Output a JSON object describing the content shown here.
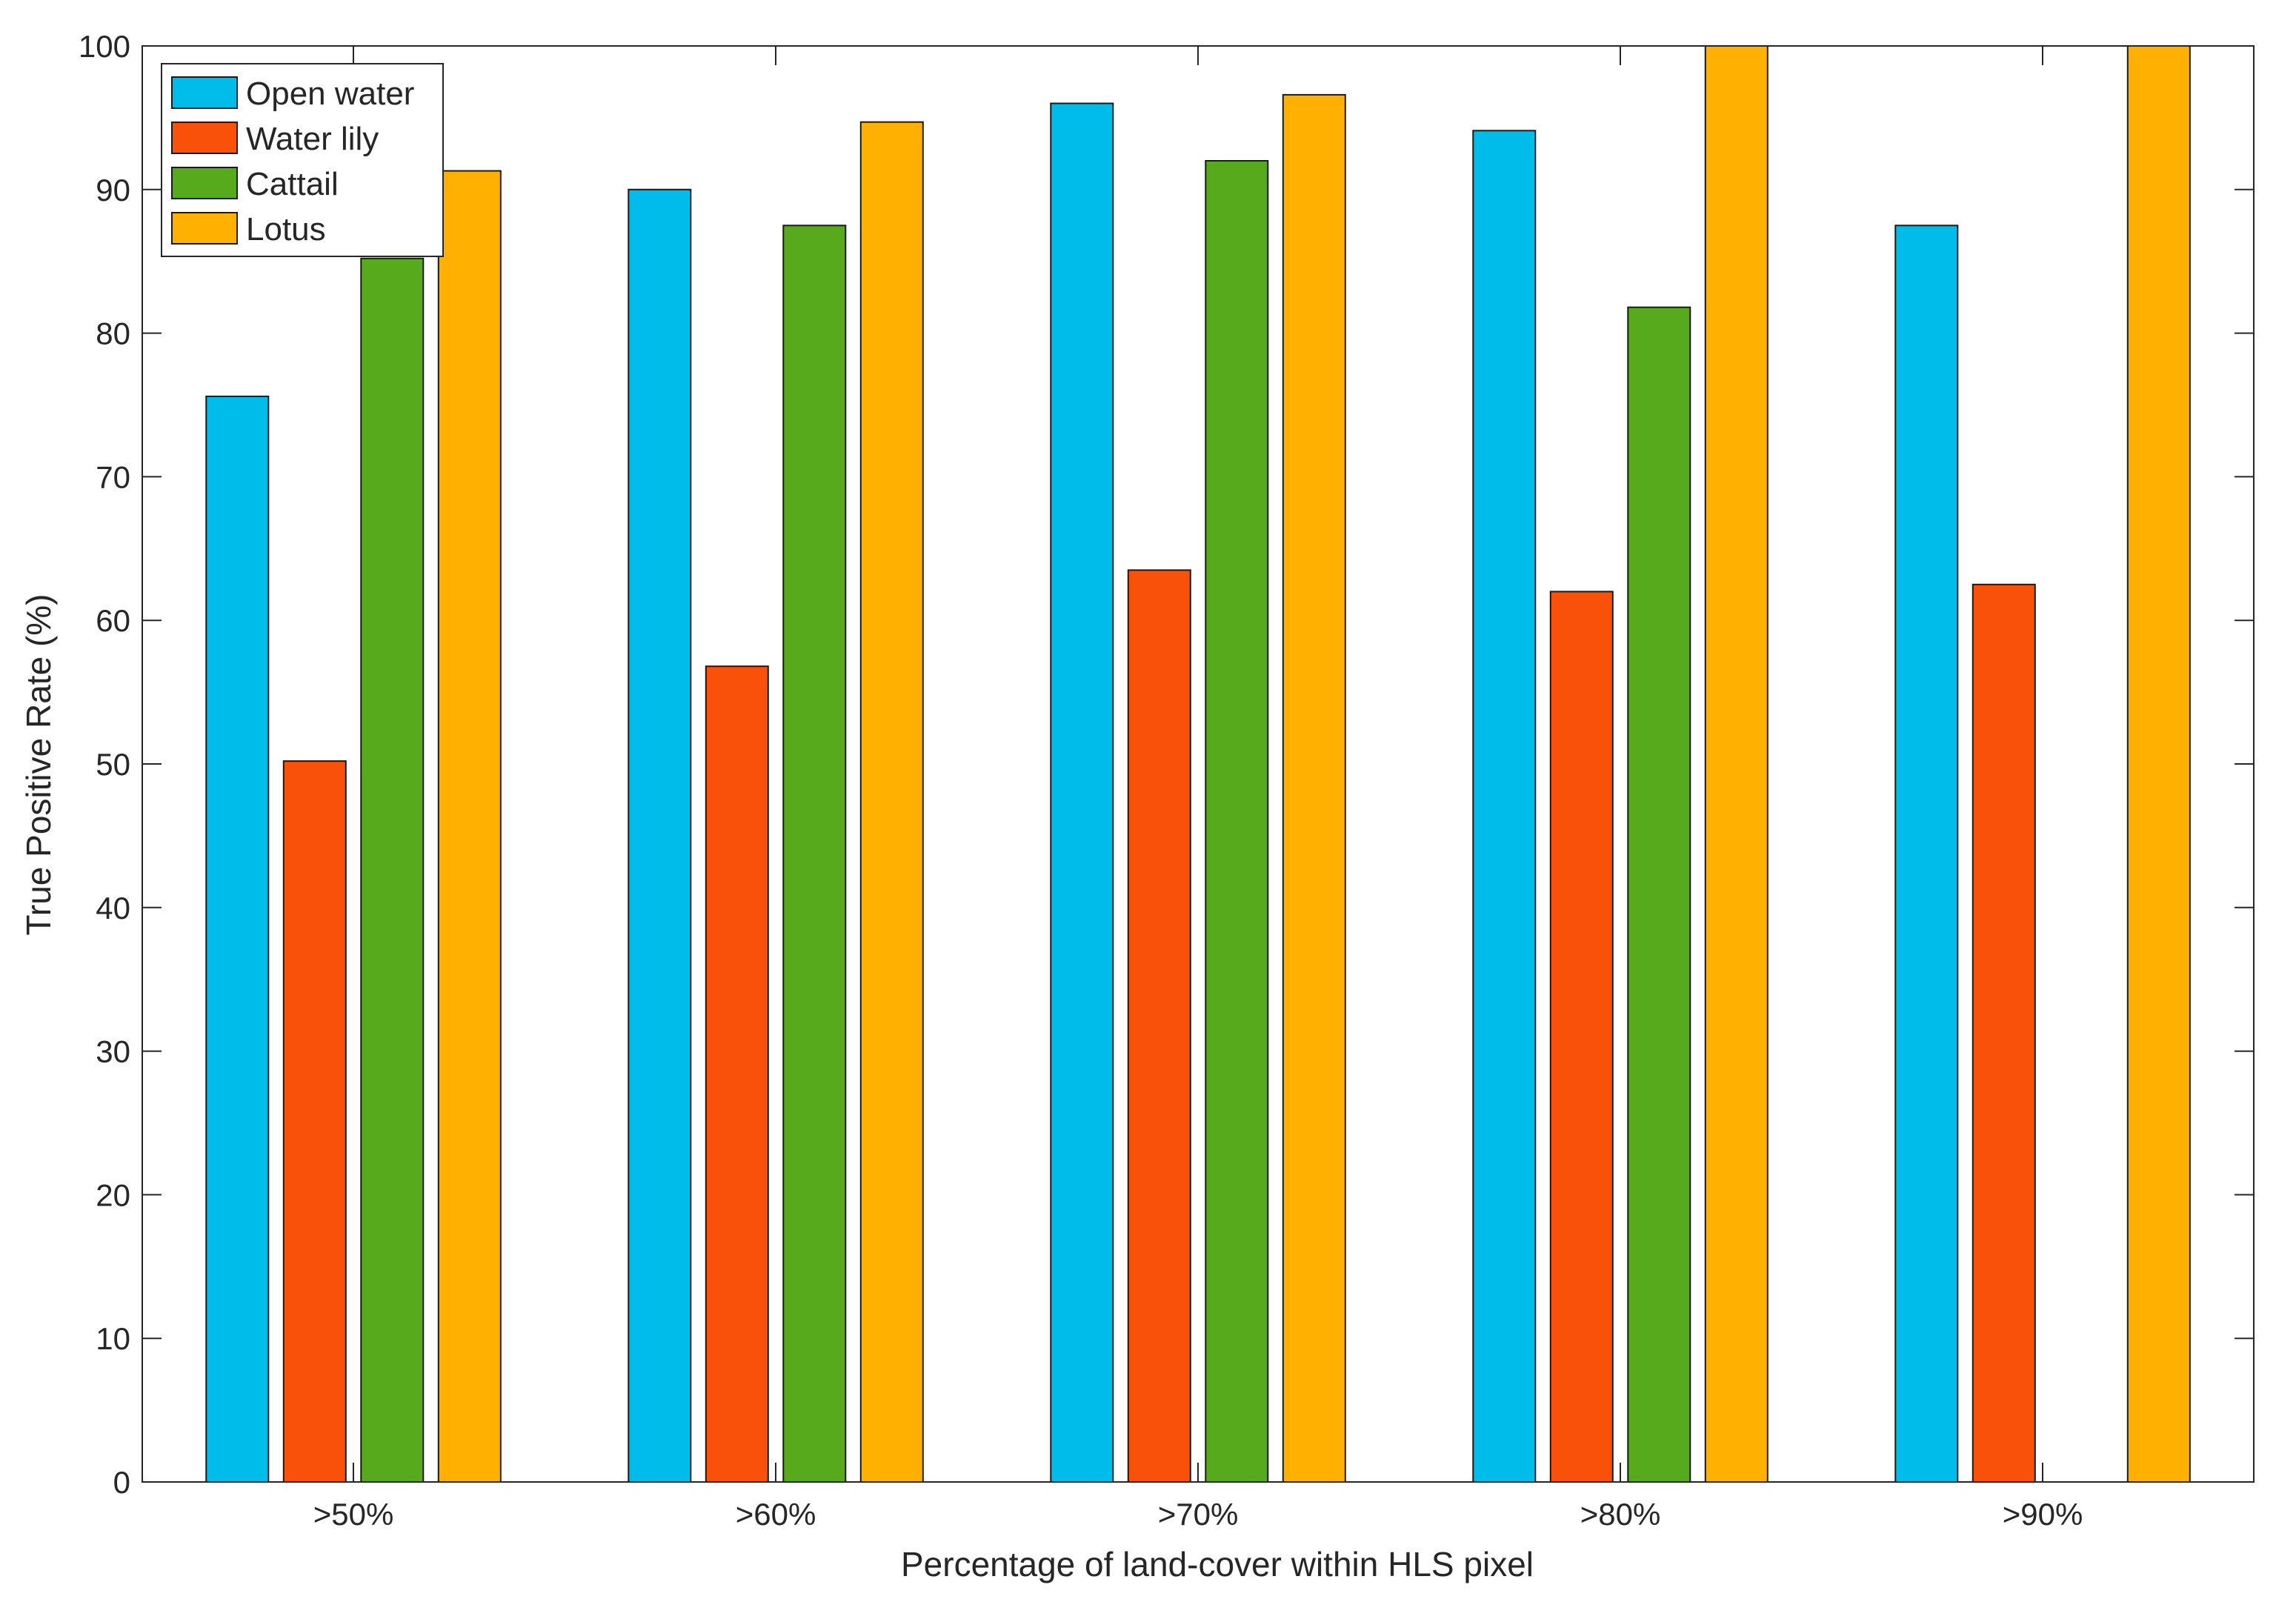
{
  "chart_data": {
    "type": "bar",
    "title": "",
    "xlabel": "Percentage of land-cover within HLS pixel",
    "ylabel": "True Positive Rate (%)",
    "categories": [
      ">50%",
      ">60%",
      ">70%",
      ">80%",
      ">90%"
    ],
    "ylim": [
      0,
      100
    ],
    "yticks": [
      0,
      10,
      20,
      30,
      40,
      50,
      60,
      70,
      80,
      90,
      100
    ],
    "grid": false,
    "legend_position": "top-left",
    "series": [
      {
        "name": "Open water",
        "color": "#00BCEA",
        "values": [
          75.6,
          90.0,
          96.0,
          94.1,
          87.5
        ]
      },
      {
        "name": "Water lily",
        "color": "#F9500A",
        "values": [
          50.2,
          56.8,
          63.5,
          62.0,
          62.5
        ]
      },
      {
        "name": "Cattail",
        "color": "#56AA1C",
        "values": [
          85.2,
          87.5,
          92.0,
          81.8,
          null
        ]
      },
      {
        "name": "Lotus",
        "color": "#FFB000",
        "values": [
          91.3,
          94.7,
          96.6,
          100.0,
          100.0
        ]
      }
    ]
  }
}
